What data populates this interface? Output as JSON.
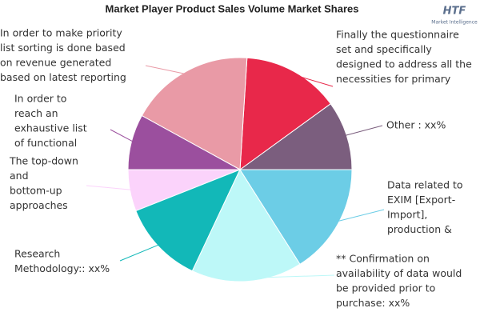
{
  "chart_data": {
    "type": "pie",
    "title": "Market Player Product Sales Volume Market Shares",
    "logo": {
      "brand": "HTF",
      "tagline": "Market Intelligence"
    },
    "categories": [
      [
        "Other : xx%"
      ],
      [
        "Finally the questionnaire",
        "set and specifically",
        "designed to address all the",
        "necessities for primary"
      ],
      [
        "In order to make priority",
        "list sorting is done based",
        "on revenue generated",
        "based on latest reporting"
      ],
      [
        "In order to",
        "reach an",
        "exhaustive list",
        "of functional"
      ],
      [
        "The top-down",
        "and",
        "bottom-up",
        "approaches"
      ],
      [
        "Research",
        "Methodology:: xx%"
      ],
      [
        "** Confirmation on",
        "availability of data would",
        "be provided prior to",
        "purchase: xx%"
      ],
      [
        "Data related to",
        "EXIM [Export-",
        "Import],",
        "production &"
      ]
    ],
    "values": [
      10,
      14,
      18,
      8,
      6,
      12,
      16,
      16
    ],
    "colors": [
      "#7b5e7e",
      "#e8284a",
      "#e99aa6",
      "#9b4f9e",
      "#fbd3fb",
      "#12b8b8",
      "#bdf8f8",
      "#6ccde6"
    ]
  }
}
